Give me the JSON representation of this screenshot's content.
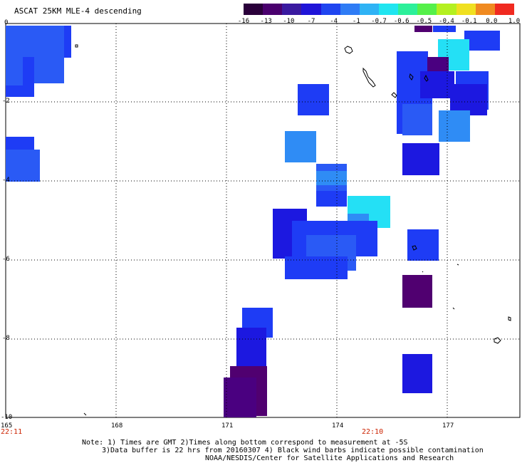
{
  "title": "ASCAT 25KM MLE-4 descending",
  "colorbar": {
    "labels": [
      "-16",
      "-13",
      "-10",
      "-7",
      "-4",
      "-1",
      "-0.7",
      "-0.6",
      "-0.5",
      "-0.4",
      "-0.1",
      "0.0",
      "1.0"
    ],
    "colors": [
      "#2a003a",
      "#4a006e",
      "#3a1aa0",
      "#1f14d8",
      "#1f45f0",
      "#2f7cf5",
      "#2fb3f5",
      "#20e5f0",
      "#2cf09a",
      "#55f04a",
      "#b4f020",
      "#f0e020",
      "#f08a20",
      "#f02a20"
    ]
  },
  "axes": {
    "lon_labels": [
      "165",
      "168",
      "171",
      "174",
      "177"
    ],
    "lat_labels": [
      "0",
      "-2",
      "-4",
      "-6",
      "-8",
      "-10"
    ]
  },
  "times": {
    "left": "22:11",
    "mid": "22:10"
  },
  "notes": {
    "line1": "Note: 1) Times are GMT 2)Times along bottom correspond to measurement at -5S",
    "line2": "3)Data buffer is 22 hrs from 20160307 4) Black wind barbs indicate possible contamination",
    "line3": "NOAA/NESDIS/Center for Satellite Applications and Research"
  },
  "data_colors": {
    "blue": "#1e3cf5",
    "mid_blue": "#2a5af5",
    "light_blue": "#2f8cf5",
    "cyan": "#24e0f5",
    "deep_blue": "#1c18e0",
    "purple": "#500070",
    "dark_purple": "#4a0080"
  }
}
